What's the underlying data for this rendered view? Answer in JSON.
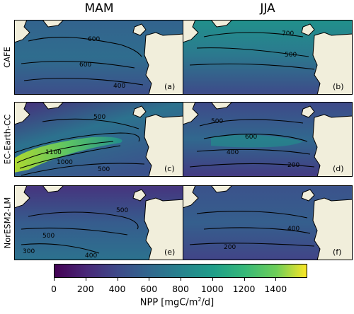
{
  "columns": [
    {
      "id": "mam",
      "title": "MAM"
    },
    {
      "id": "jja",
      "title": "JJA"
    }
  ],
  "rows": [
    {
      "id": "cafe",
      "label": "CAFE"
    },
    {
      "id": "ecearth",
      "label": "EC-Earth-CC"
    },
    {
      "id": "noresm",
      "label": "NorESM2-LM"
    }
  ],
  "panels": [
    {
      "id": "a",
      "row": 0,
      "col": 0,
      "tag": "(a)",
      "contour_labels": [
        "600",
        "600",
        "400"
      ],
      "level": 0.33
    },
    {
      "id": "b",
      "row": 0,
      "col": 1,
      "tag": "(b)",
      "contour_labels": [
        "700",
        "500"
      ],
      "level": 0.38
    },
    {
      "id": "c",
      "row": 1,
      "col": 0,
      "tag": "(c)",
      "contour_labels": [
        "500",
        "1100",
        "1000",
        "500"
      ],
      "level": 0.45
    },
    {
      "id": "d",
      "row": 1,
      "col": 1,
      "tag": "(d)",
      "contour_labels": [
        "500",
        "600",
        "400",
        "200"
      ],
      "level": 0.3
    },
    {
      "id": "e",
      "row": 2,
      "col": 0,
      "tag": "(e)",
      "contour_labels": [
        "500",
        "500",
        "300",
        "400"
      ],
      "level": 0.22
    },
    {
      "id": "f",
      "row": 2,
      "col": 1,
      "tag": "(f)",
      "contour_labels": [
        "400",
        "200"
      ],
      "level": 0.2
    }
  ],
  "colorbar": {
    "label": "NPP [mgC/m²/d]",
    "label_prefix": "NPP [mgC/m",
    "label_sup": "2",
    "label_suffix": "/d]",
    "ticks": [
      "0",
      "200",
      "400",
      "600",
      "800",
      "1000",
      "1200",
      "1400"
    ],
    "tick_values": [
      0,
      200,
      400,
      600,
      800,
      1000,
      1200,
      1400
    ],
    "min": 0,
    "max": 1600,
    "colormap": "viridis"
  },
  "colors": {
    "land": "#f1eedb",
    "viridis_0": "#440154",
    "viridis_25": "#3b528b",
    "viridis_50": "#21918c",
    "viridis_75": "#5ec962",
    "viridis_100": "#fde725"
  }
}
